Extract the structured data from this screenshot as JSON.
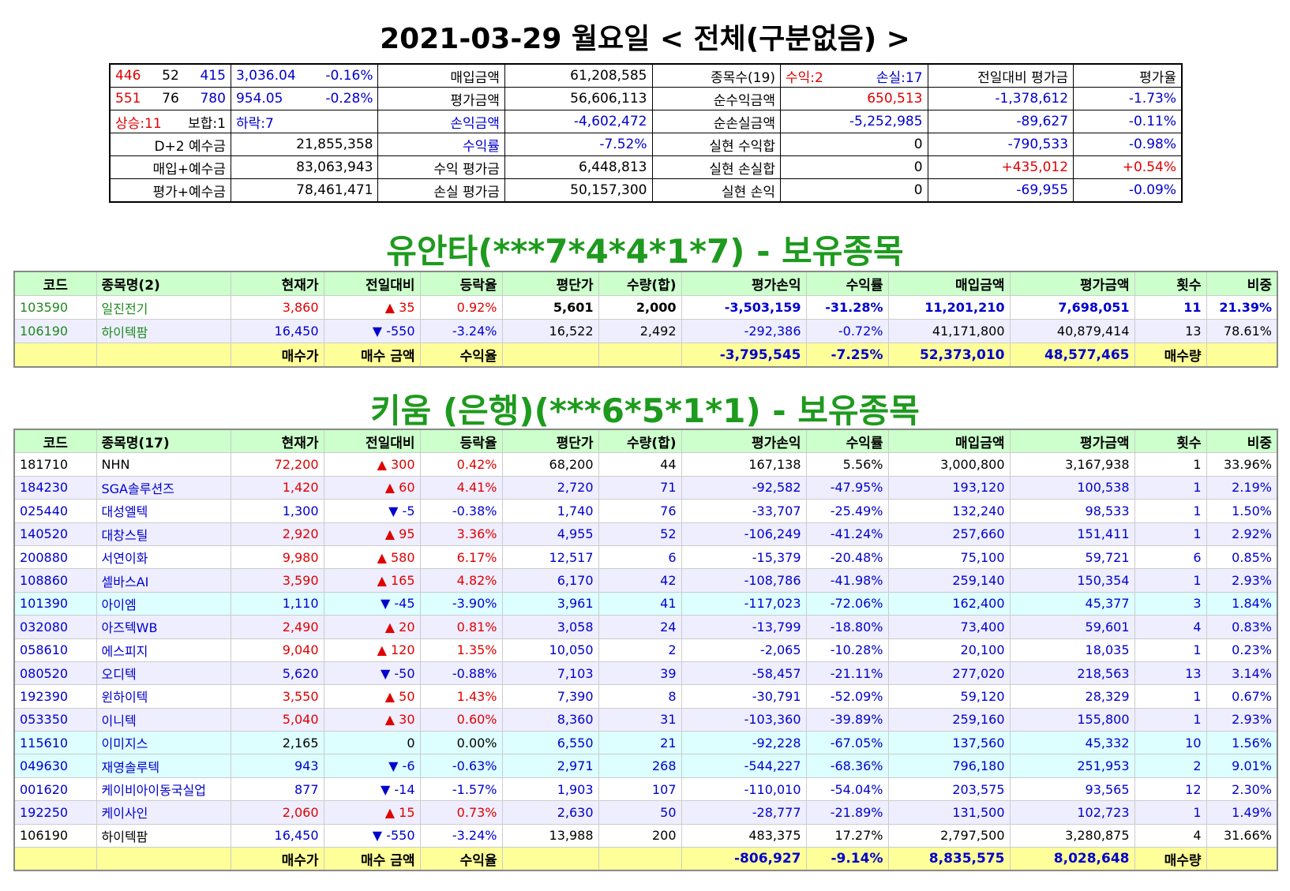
{
  "title": "2021-03-29 월요일 < 전체(구분없음) >",
  "summary": {
    "rows": [
      [
        [
          "446",
          "52",
          "415"
        ],
        [
          "3,036.04",
          "-0.16%"
        ],
        "매입금액",
        "61,208,585",
        "종목수(19)",
        [
          "수익:2",
          "손실:17"
        ],
        "전일대비 평가금",
        "평가율"
      ],
      [
        [
          "551",
          "76",
          "780"
        ],
        [
          "954.05",
          "-0.28%"
        ],
        "평가금액",
        "56,606,113",
        "순수익금액",
        "650,513",
        "-1,378,612",
        "-1.73%"
      ],
      [
        [
          "상승:11",
          "보합:1"
        ],
        [
          "하락:7"
        ],
        "손익금액",
        "-4,602,472",
        "순손실금액",
        "-5,252,985",
        "-89,627",
        "-0.11%"
      ],
      [
        "D+2 예수금",
        "21,855,358",
        "수익률",
        "-7.52%",
        "실현 수익합",
        "0",
        "-790,533",
        "-0.98%"
      ],
      [
        "매입+예수금",
        "83,063,943",
        "수익 평가금",
        "6,448,813",
        "실현 손실합",
        "0",
        "+435,012",
        "+0.54%"
      ],
      [
        "평가+예수금",
        "78,461,471",
        "손실 평가금",
        "50,157,300",
        "실현 손익",
        "0",
        "-69,955",
        "-0.09%"
      ]
    ]
  },
  "sections": [
    {
      "heading": "유안타(***7*4*4*1*7) - 보유종목",
      "table": {
        "header": [
          "코드",
          "종목명(2)",
          "현재가",
          "전일대비",
          "등락율",
          "평단가",
          "수량(합)",
          "평가손익",
          "수익률",
          "매입금액",
          "평가금액",
          "횟수",
          "비중"
        ],
        "rows": [
          [
            "103590",
            "일진전기",
            "3,860",
            "▲ 35",
            "0.92%",
            "5,601",
            "2,000",
            "-3,503,159",
            "-31.28%",
            "11,201,210",
            "7,698,051",
            "11",
            "21.39%"
          ],
          [
            "106190",
            "하이텍팜",
            "16,450",
            "▼ -550",
            "-3.24%",
            "16,522",
            "2,492",
            "-292,386",
            "-0.72%",
            "41,171,800",
            "40,879,414",
            "13",
            "78.61%"
          ]
        ],
        "total": [
          null,
          null,
          "매수가",
          "매수 금액",
          "수익율",
          null,
          null,
          "-3,795,545",
          "-7.25%",
          "52,373,010",
          "48,577,465",
          "매수량",
          null
        ]
      }
    },
    {
      "heading": "키움 (은행)(***6*5*1*1) - 보유종목",
      "table": {
        "header": [
          "코드",
          "종목명(17)",
          "현재가",
          "전일대비",
          "등락율",
          "평단가",
          "수량(합)",
          "평가손익",
          "수익률",
          "매입금액",
          "평가금액",
          "횟수",
          "비중"
        ],
        "rows": [
          [
            "181710",
            "NHN",
            "72,200",
            "▲ 300",
            "0.42%",
            "68,200",
            "44",
            "167,138",
            "5.56%",
            "3,000,800",
            "3,167,938",
            "1",
            "33.96%"
          ],
          [
            "184230",
            "SGA솔루션즈",
            "1,420",
            "▲ 60",
            "4.41%",
            "2,720",
            "71",
            "-92,582",
            "-47.95%",
            "193,120",
            "100,538",
            "1",
            "2.19%"
          ],
          [
            "025440",
            "대성엘텍",
            "1,300",
            "▼ -5",
            "-0.38%",
            "1,740",
            "76",
            "-33,707",
            "-25.49%",
            "132,240",
            "98,533",
            "1",
            "1.50%"
          ],
          [
            "140520",
            "대창스틸",
            "2,920",
            "▲ 95",
            "3.36%",
            "4,955",
            "52",
            "-106,249",
            "-41.24%",
            "257,660",
            "151,411",
            "1",
            "2.92%"
          ],
          [
            "200880",
            "서연이화",
            "9,980",
            "▲ 580",
            "6.17%",
            "12,517",
            "6",
            "-15,379",
            "-20.48%",
            "75,100",
            "59,721",
            "6",
            "0.85%"
          ],
          [
            "108860",
            "셀바스AI",
            "3,590",
            "▲ 165",
            "4.82%",
            "6,170",
            "42",
            "-108,786",
            "-41.98%",
            "259,140",
            "150,354",
            "1",
            "2.93%"
          ],
          [
            "101390",
            "아이엠",
            "1,110",
            "▼ -45",
            "-3.90%",
            "3,961",
            "41",
            "-117,023",
            "-72.06%",
            "162,400",
            "45,377",
            "3",
            "1.84%"
          ],
          [
            "032080",
            "아즈텍WB",
            "2,490",
            "▲ 20",
            "0.81%",
            "3,058",
            "24",
            "-13,799",
            "-18.80%",
            "73,400",
            "59,601",
            "4",
            "0.83%"
          ],
          [
            "058610",
            "에스피지",
            "9,040",
            "▲ 120",
            "1.35%",
            "10,050",
            "2",
            "-2,065",
            "-10.28%",
            "20,100",
            "18,035",
            "1",
            "0.23%"
          ],
          [
            "080520",
            "오디텍",
            "5,620",
            "▼ -50",
            "-0.88%",
            "7,103",
            "39",
            "-58,457",
            "-21.11%",
            "277,020",
            "218,563",
            "13",
            "3.14%"
          ],
          [
            "192390",
            "윈하이텍",
            "3,550",
            "▲ 50",
            "1.43%",
            "7,390",
            "8",
            "-30,791",
            "-52.09%",
            "59,120",
            "28,329",
            "1",
            "0.67%"
          ],
          [
            "053350",
            "이니텍",
            "5,040",
            "▲ 30",
            "0.60%",
            "8,360",
            "31",
            "-103,360",
            "-39.89%",
            "259,160",
            "155,800",
            "1",
            "2.93%"
          ],
          [
            "115610",
            "이미지스",
            "2,165",
            "0",
            "0.00%",
            "6,550",
            "21",
            "-92,228",
            "-67.05%",
            "137,560",
            "45,332",
            "10",
            "1.56%"
          ],
          [
            "049630",
            "재영솔루텍",
            "943",
            "▼ -6",
            "-0.63%",
            "2,971",
            "268",
            "-544,227",
            "-68.36%",
            "796,180",
            "251,953",
            "2",
            "9.01%"
          ],
          [
            "001620",
            "케이비아이동국실업",
            "877",
            "▼ -14",
            "-1.57%",
            "1,903",
            "107",
            "-110,010",
            "-54.04%",
            "203,575",
            "93,565",
            "12",
            "2.30%"
          ],
          [
            "192250",
            "케이사인",
            "2,060",
            "▲ 15",
            "0.73%",
            "2,630",
            "50",
            "-28,777",
            "-21.89%",
            "131,500",
            "102,723",
            "1",
            "1.49%"
          ],
          [
            "106190",
            "하이텍팜",
            "16,450",
            "▼ -550",
            "-3.24%",
            "13,988",
            "200",
            "483,375",
            "17.27%",
            "2,797,500",
            "3,280,875",
            "4",
            "31.66%"
          ]
        ],
        "total": [
          null,
          null,
          "매수가",
          "매수 금액",
          "수익율",
          null,
          null,
          "-806,927",
          "-9.14%",
          "8,835,575",
          "8,028,648",
          "매수량",
          null
        ]
      }
    }
  ]
}
